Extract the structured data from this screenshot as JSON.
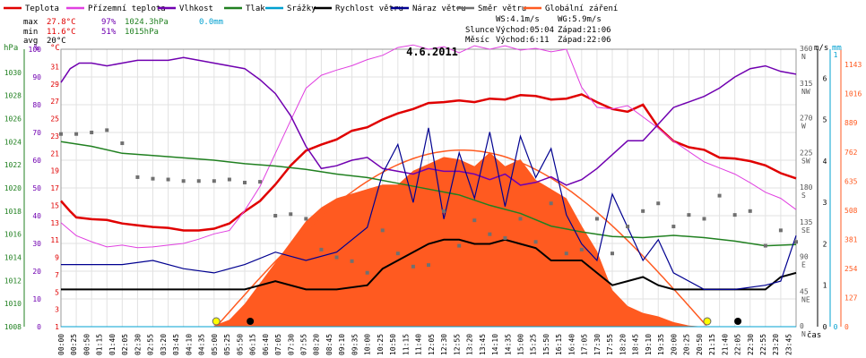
{
  "chart_data": {
    "type": "line",
    "title": "4.6.2011",
    "legend": [
      {
        "name": "Teplota",
        "color": "#e00000"
      },
      {
        "name": "Přízemní teplota",
        "color": "#e040e0"
      },
      {
        "name": "Vlhkost",
        "color": "#7000b0"
      },
      {
        "name": "Tlak",
        "color": "#208020"
      },
      {
        "name": "Srážky",
        "color": "#00a0d0"
      },
      {
        "name": "Rychlost větru",
        "color": "#000000"
      },
      {
        "name": "Náraz větru",
        "color": "#000090"
      },
      {
        "name": "Směr větru",
        "color": "#707070"
      },
      {
        "name": "Globální záření",
        "color": "#ff5a20"
      }
    ],
    "stats": {
      "max": {
        "label": "max",
        "temp": "27.8°C",
        "hum": "97%",
        "press": "1024.3hPa",
        "rain": "0.0mm"
      },
      "min": {
        "label": "min",
        "temp": "11.6°C",
        "hum": "51%",
        "press": "1015hPa"
      },
      "avg": {
        "label": "avg",
        "temp": "20°C"
      }
    },
    "wind_info": {
      "ws": "WS:4.1m/s",
      "wg": "WG:5.9m/s"
    },
    "sun": {
      "slunce_label": "Slunce",
      "slunce_rise": "Východ:05:04",
      "slunce_set": "Západ:21:06",
      "mesic_label": "Měsíc",
      "mesic_rise": "Východ:6:11",
      "mesic_set": "Západ:22:06"
    },
    "axes": {
      "hpa": {
        "unit": "hPa",
        "ticks": [
          "1008",
          "1010",
          "1012",
          "1014",
          "1016",
          "1018",
          "1020",
          "1022",
          "1024",
          "1026",
          "1028",
          "1030"
        ],
        "range": [
          1008,
          1032
        ]
      },
      "pct": {
        "unit": "%",
        "ticks": [
          "0",
          "10",
          "20",
          "30",
          "40",
          "50",
          "60",
          "70",
          "80",
          "90",
          "100"
        ],
        "range": [
          0,
          100
        ]
      },
      "temp": {
        "unit": "°C",
        "ticks": [
          "1",
          "3",
          "5",
          "7",
          "9",
          "11",
          "13",
          "15",
          "17",
          "19",
          "21",
          "23",
          "25",
          "27",
          "29",
          "31"
        ],
        "range": [
          1,
          33
        ]
      },
      "dir": {
        "ticks": [
          {
            "v": "0",
            "l": "N"
          },
          {
            "v": "45",
            "l": "NE"
          },
          {
            "v": "90",
            "l": "E"
          },
          {
            "v": "135",
            "l": "SE"
          },
          {
            "v": "180",
            "l": "S"
          },
          {
            "v": "225",
            "l": "SW"
          },
          {
            "v": "270",
            "l": "W"
          },
          {
            "v": "315",
            "l": "NW"
          },
          {
            "v": "360",
            "l": "N"
          }
        ],
        "range": [
          0,
          360
        ]
      },
      "ms": {
        "unit": "m/s",
        "ticks": [
          "0",
          "1",
          "2",
          "3",
          "4",
          "5",
          "6"
        ],
        "range": [
          0,
          6.7
        ]
      },
      "mm": {
        "unit": "mm",
        "ticks": [
          "0",
          "1"
        ],
        "range": [
          0,
          1.02
        ]
      },
      "wm2": {
        "ticks": [
          "0",
          "127",
          "254",
          "381",
          "508",
          "635",
          "762",
          "889",
          "1016",
          "1143"
        ],
        "range": [
          0,
          1210
        ]
      },
      "x_label": "čas",
      "x_ticks": [
        "00:00",
        "00:25",
        "00:50",
        "01:15",
        "01:40",
        "02:05",
        "02:30",
        "02:55",
        "03:20",
        "03:45",
        "04:10",
        "04:35",
        "05:00",
        "05:25",
        "05:50",
        "06:15",
        "06:40",
        "07:05",
        "07:30",
        "07:55",
        "08:20",
        "08:45",
        "09:10",
        "09:35",
        "10:00",
        "10:25",
        "10:50",
        "11:15",
        "11:40",
        "12:05",
        "12:30",
        "12:55",
        "13:20",
        "13:45",
        "14:10",
        "14:35",
        "15:00",
        "15:25",
        "15:50",
        "16:15",
        "16:40",
        "17:05",
        "17:30",
        "17:55",
        "18:20",
        "18:45",
        "19:10",
        "19:35",
        "20:00",
        "20:25",
        "20:50",
        "21:15",
        "21:40",
        "22:05",
        "22:30",
        "22:55",
        "23:20",
        "23:45"
      ]
    },
    "series": [
      {
        "name": "Teplota",
        "axis": "temp",
        "x": [
          0,
          0.3,
          0.5,
          1,
          1.5,
          2,
          2.5,
          3,
          3.5,
          4,
          4.5,
          5,
          5.5,
          6,
          6.5,
          7,
          7.5,
          8,
          8.5,
          9,
          9.5,
          10,
          10.5,
          11,
          11.5,
          12,
          12.5,
          13,
          13.5,
          14,
          14.5,
          15,
          15.5,
          16,
          16.5,
          17,
          17.5,
          18,
          18.5,
          19,
          19.5,
          20,
          20.5,
          21,
          21.5,
          22,
          22.5,
          23,
          23.5,
          24
        ],
        "values": [
          15.5,
          14.3,
          13.6,
          13.4,
          13.3,
          12.9,
          12.7,
          12.5,
          12.4,
          12.1,
          12.1,
          12.3,
          12.9,
          14.3,
          15.5,
          17.4,
          19.6,
          21.3,
          22.0,
          22.6,
          23.6,
          24.0,
          24.9,
          25.6,
          26.1,
          26.8,
          26.9,
          27.1,
          26.9,
          27.3,
          27.2,
          27.7,
          27.6,
          27.2,
          27.3,
          27.8,
          26.9,
          26.1,
          25.8,
          26.6,
          24.0,
          22.4,
          21.7,
          21.4,
          20.5,
          20.4,
          20.1,
          19.6,
          18.7,
          18.1
        ]
      },
      {
        "name": "Přízemní teplota",
        "axis": "temp",
        "x": [
          0,
          0.5,
          1,
          1.5,
          2,
          2.5,
          3,
          3.5,
          4,
          4.5,
          5,
          5.5,
          6,
          6.5,
          7,
          7.5,
          8,
          8.5,
          9,
          9.5,
          10,
          10.5,
          11,
          11.5,
          12,
          12.5,
          13,
          13.5,
          14,
          14.5,
          15,
          15.5,
          16,
          16.5,
          17,
          17.5,
          18,
          18.5,
          19,
          19.5,
          20,
          20.5,
          21,
          21.5,
          22,
          22.5,
          23,
          23.5,
          24
        ],
        "values": [
          13.0,
          11.5,
          10.8,
          10.2,
          10.4,
          10.1,
          10.2,
          10.4,
          10.6,
          11.1,
          11.7,
          12.1,
          14.4,
          17.2,
          21.0,
          24.8,
          28.5,
          30.0,
          30.6,
          31.1,
          31.8,
          32.3,
          33.2,
          33.5,
          33.0,
          33.3,
          32.6,
          33.4,
          33.0,
          33.4,
          32.9,
          33.1,
          32.7,
          33.0,
          28.6,
          26.3,
          26.1,
          26.5,
          25.2,
          23.9,
          22.4,
          21.2,
          20.0,
          19.3,
          18.6,
          17.6,
          16.5,
          15.8,
          14.5
        ]
      },
      {
        "name": "Vlhkost",
        "axis": "pct",
        "x": [
          0,
          0.3,
          0.6,
          1,
          1.5,
          2,
          2.5,
          3,
          3.5,
          4,
          4.5,
          5,
          5.5,
          6,
          6.5,
          7,
          7.5,
          8,
          8.5,
          9,
          9.5,
          10,
          10.5,
          11,
          11.5,
          12,
          12.5,
          13,
          13.5,
          14,
          14.5,
          15,
          15.5,
          16,
          16.5,
          17,
          17.5,
          18,
          18.5,
          19,
          19.5,
          20,
          20.5,
          21,
          21.5,
          22,
          22.5,
          23,
          23.5,
          24
        ],
        "values": [
          88,
          93,
          95,
          95,
          94,
          95,
          96,
          96,
          96,
          97,
          96,
          95,
          94,
          93,
          89,
          84,
          76,
          65,
          57,
          58,
          60,
          61,
          57,
          56,
          55,
          57,
          56,
          56,
          55,
          53,
          55,
          51,
          52,
          54,
          51,
          53,
          57,
          62,
          67,
          67,
          73,
          79,
          81,
          83,
          86,
          90,
          93,
          94,
          92,
          91
        ]
      },
      {
        "name": "Tlak",
        "axis": "hpa",
        "x": [
          0,
          1,
          2,
          3,
          4,
          5,
          6,
          7,
          8,
          9,
          10,
          11,
          12,
          13,
          14,
          15,
          16,
          17,
          18,
          19,
          20,
          21,
          22,
          23,
          24
        ],
        "values": [
          1024.0,
          1023.6,
          1023.0,
          1022.8,
          1022.6,
          1022.4,
          1022.1,
          1021.9,
          1021.6,
          1021.2,
          1020.9,
          1020.4,
          1019.9,
          1019.4,
          1018.5,
          1017.8,
          1016.7,
          1016.2,
          1015.8,
          1015.7,
          1015.9,
          1015.7,
          1015.4,
          1015.0,
          1015.1
        ]
      },
      {
        "name": "Srážky",
        "axis": "mm",
        "x": [
          0,
          24
        ],
        "values": [
          0.0,
          0.0
        ]
      },
      {
        "name": "Rychlost větru",
        "axis": "ms",
        "x": [
          0,
          2,
          4,
          5,
          6,
          7,
          8,
          9,
          10,
          10.5,
          11,
          11.5,
          12,
          12.5,
          13,
          13.5,
          14,
          14.5,
          15,
          15.5,
          16,
          16.5,
          17,
          17.5,
          18,
          18.5,
          19,
          19.5,
          20,
          21,
          22,
          23,
          23.5,
          24
        ],
        "values": [
          0.9,
          0.9,
          0.9,
          0.9,
          0.9,
          1.1,
          0.9,
          0.9,
          1.0,
          1.4,
          1.6,
          1.8,
          2.0,
          2.1,
          2.1,
          2.0,
          2.0,
          2.1,
          2.0,
          1.9,
          1.6,
          1.6,
          1.6,
          1.3,
          1.0,
          1.1,
          1.2,
          1.0,
          0.9,
          0.9,
          0.9,
          0.9,
          1.2,
          1.3
        ]
      },
      {
        "name": "Náraz větru",
        "axis": "ms",
        "x": [
          0,
          1,
          2,
          3,
          4,
          5,
          6,
          7,
          8,
          9,
          10,
          10.5,
          11,
          11.5,
          12,
          12.5,
          13,
          13.5,
          14,
          14.5,
          15,
          15.5,
          16,
          16.5,
          17,
          17.5,
          18,
          18.5,
          19,
          19.5,
          20,
          21,
          22,
          23,
          23.5,
          24
        ],
        "values": [
          1.5,
          1.5,
          1.5,
          1.6,
          1.4,
          1.3,
          1.5,
          1.8,
          1.6,
          1.8,
          2.4,
          3.7,
          4.4,
          3.0,
          4.8,
          2.6,
          4.2,
          3.1,
          4.7,
          2.9,
          4.6,
          3.6,
          4.3,
          2.7,
          2.0,
          1.6,
          3.2,
          2.4,
          1.6,
          2.1,
          1.3,
          0.9,
          0.9,
          1.0,
          1.1,
          2.2
        ]
      },
      {
        "name": "Směr větru",
        "axis": "dir",
        "type": "scatter",
        "x": [
          0,
          0.5,
          1,
          1.5,
          2,
          2.5,
          3,
          3.5,
          4,
          4.5,
          5,
          5.5,
          6,
          6.5,
          7,
          7.5,
          8,
          8.5,
          9,
          9.5,
          10,
          10.5,
          11,
          11.5,
          12,
          12.5,
          13,
          13.5,
          14,
          14.5,
          15,
          15.5,
          16,
          16.5,
          17,
          17.5,
          18,
          18.5,
          19,
          19.5,
          20,
          20.5,
          21,
          21.5,
          22,
          22.5,
          23,
          23.5,
          24
        ],
        "values": [
          250,
          250,
          252,
          255,
          238,
          194,
          192,
          191,
          189,
          189,
          189,
          191,
          187,
          188,
          144,
          146,
          140,
          100,
          90,
          85,
          70,
          125,
          95,
          78,
          80,
          150,
          105,
          138,
          120,
          115,
          140,
          110,
          160,
          95,
          100,
          140,
          95,
          130,
          150,
          160,
          130,
          145,
          140,
          170,
          145,
          150,
          105,
          125,
          110
        ]
      },
      {
        "name": "Globální záření",
        "axis": "wm2",
        "type": "area",
        "x": [
          5,
          5.5,
          6,
          6.5,
          7,
          7.5,
          8,
          8.5,
          9,
          9.5,
          10,
          10.5,
          11,
          11.5,
          12,
          12.5,
          13,
          13.5,
          14,
          14.5,
          15,
          15.5,
          16,
          16.5,
          17,
          17.5,
          18,
          18.5,
          19,
          19.5,
          20,
          20.5,
          21
        ],
        "values": [
          5,
          30,
          100,
          190,
          280,
          370,
          460,
          520,
          560,
          580,
          600,
          620,
          620,
          680,
          710,
          740,
          730,
          700,
          760,
          700,
          730,
          640,
          600,
          560,
          440,
          330,
          160,
          90,
          60,
          45,
          20,
          5,
          0
        ]
      }
    ]
  }
}
